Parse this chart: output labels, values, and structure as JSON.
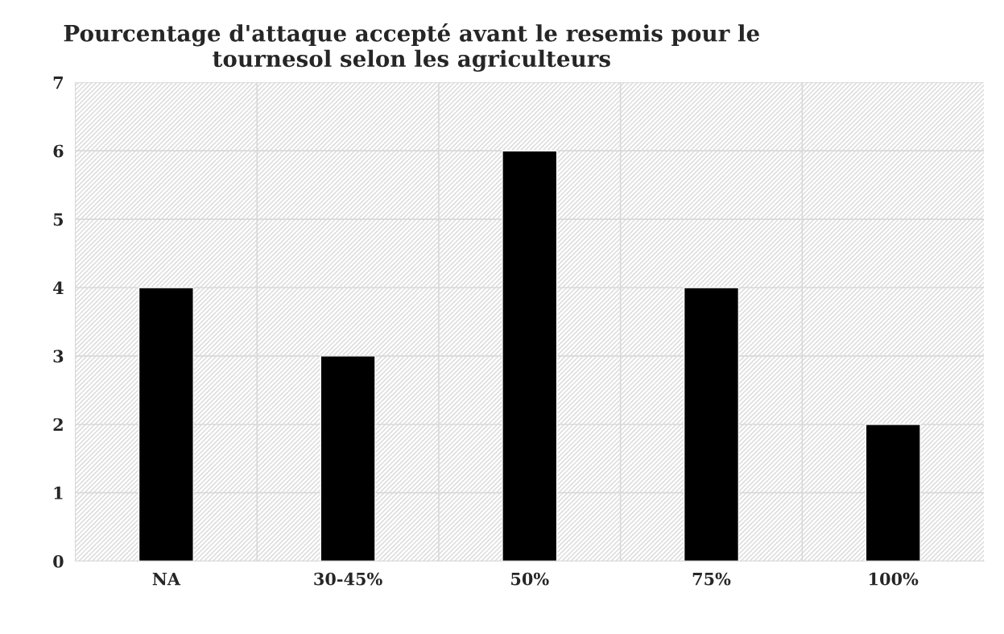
{
  "chart_data": {
    "type": "bar",
    "title": "Pourcentage d'attaque accepté avant le resemis pour le\ntournesol selon les agriculteurs",
    "categories": [
      "NA",
      "30-45%",
      "50%",
      "75%",
      "100%"
    ],
    "values": [
      4,
      3,
      6,
      4,
      2
    ],
    "color": "#000000",
    "ylim": [
      0,
      7
    ],
    "yticks": [
      0,
      1,
      2,
      3,
      4,
      5,
      6,
      7
    ],
    "grid": true,
    "legend": false
  }
}
